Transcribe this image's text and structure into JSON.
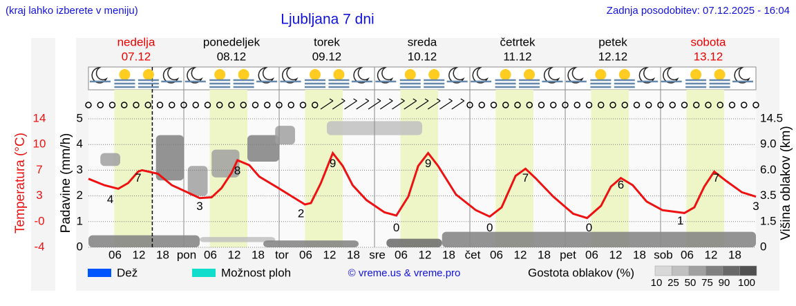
{
  "header": {
    "hint": "(kraj lahko izberete v meniju)",
    "update": "Zadnja posodobitev: 07.12.2025 - 16:04",
    "copyright": "© vreme.us & vreme.pro"
  },
  "chart_data": {
    "type": "meteogram",
    "title": "Ljubljana 7 dni",
    "days": [
      {
        "name": "nedelja",
        "date": "07.12",
        "color": "#ee0000"
      },
      {
        "name": "ponedeljek",
        "date": "08.12",
        "color": "#000000"
      },
      {
        "name": "torek",
        "date": "09.12",
        "color": "#000000"
      },
      {
        "name": "sreda",
        "date": "10.12",
        "color": "#000000"
      },
      {
        "name": "četrtek",
        "date": "11.12",
        "color": "#000000"
      },
      {
        "name": "petek",
        "date": "12.12",
        "color": "#000000"
      },
      {
        "name": "sobota",
        "date": "13.12",
        "color": "#ee0000"
      }
    ],
    "xlim": [
      0,
      168
    ],
    "xticks": [
      {
        "value": 6,
        "label": "06"
      },
      12,
      18,
      {
        "value": 24,
        "label": "pon"
      },
      {
        "value": 30,
        "label": "06"
      },
      {
        "value": 36,
        "label": "12"
      },
      {
        "value": 42,
        "label": "18"
      },
      {
        "value": 48,
        "label": "tor"
      },
      {
        "value": 54,
        "label": "06"
      },
      {
        "value": 60,
        "label": "12"
      },
      {
        "value": 66,
        "label": "18"
      },
      {
        "value": 72,
        "label": "sre"
      },
      {
        "value": 78,
        "label": "06"
      },
      {
        "value": 84,
        "label": "12"
      },
      {
        "value": 90,
        "label": "18"
      },
      {
        "value": 96,
        "label": "čet"
      },
      {
        "value": 102,
        "label": "06"
      },
      {
        "value": 108,
        "label": "12"
      },
      {
        "value": 114,
        "label": "18"
      },
      {
        "value": 120,
        "label": "pet"
      },
      {
        "value": 126,
        "label": "06"
      },
      {
        "value": 132,
        "label": "12"
      },
      {
        "value": 138,
        "label": "18"
      },
      {
        "value": 144,
        "label": "sob"
      },
      {
        "value": 150,
        "label": "06"
      },
      {
        "value": 156,
        "label": "12"
      },
      {
        "value": 162,
        "label": "18"
      }
    ],
    "now": 16.07,
    "daylight": [
      6.5,
      16
    ],
    "ylabel": "Padavine (mm/h)",
    "ylim": [
      0,
      5
    ],
    "yticks": [
      0,
      1,
      2,
      3,
      4,
      5
    ],
    "temperature": {
      "label": "Temperatura (°C)",
      "color": "#ee1111",
      "ylim": [
        -4,
        14
      ],
      "ticks": [
        {
          "value": -4,
          "label": "-4"
        },
        {
          "value": -0.4,
          "label": "-0"
        },
        {
          "value": 3.2,
          "label": "3"
        },
        {
          "value": 6.8,
          "label": "7"
        },
        {
          "value": 10.4,
          "label": "10"
        },
        14
      ],
      "x": [
        0,
        4,
        7.5,
        10,
        12.5,
        13.5,
        17.5,
        21,
        24.5,
        28,
        31,
        33.5,
        36,
        37.5,
        40.5,
        43,
        47.5,
        51,
        54.5,
        56,
        58.5,
        61.5,
        64,
        66.5,
        70,
        74.5,
        77.5,
        80.5,
        83,
        85.5,
        88,
        92.5,
        97.5,
        101,
        104,
        107.5,
        110,
        112.5,
        117,
        122,
        125.5,
        129,
        131.5,
        134,
        137,
        140.5,
        144.5,
        150,
        152.5,
        155,
        157.5,
        160.5,
        164.5,
        168
      ],
      "values": [
        5.6,
        4.7,
        4.2,
        5.0,
        6.6,
        6.8,
        6.3,
        4.7,
        3.8,
        2.9,
        3.0,
        4.3,
        6.4,
        8.2,
        7.5,
        5.9,
        4.4,
        3.2,
        2.0,
        2.2,
        5.0,
        9.2,
        7.4,
        4.7,
        2.6,
        0.9,
        0.45,
        3.1,
        7.4,
        9.2,
        7.4,
        3.4,
        1.2,
        0.3,
        1.6,
        6.0,
        7.0,
        5.7,
        3.1,
        0.7,
        0.1,
        1.8,
        4.5,
        5.7,
        4.7,
        2.4,
        1.2,
        0.8,
        1.6,
        4.5,
        6.6,
        5.3,
        3.7,
        3.1
      ],
      "extremes": {
        "x": [
          5.5,
          12.5,
          28,
          37.5,
          53.5,
          61.5,
          77.5,
          85.5,
          101,
          110,
          126,
          134,
          149,
          158,
          168
        ],
        "values": [
          4,
          7,
          3,
          8,
          2,
          9,
          0,
          9,
          0,
          7,
          0,
          6,
          1,
          7,
          3
        ]
      }
    },
    "clouds": {
      "label": "Višina oblakov (km)",
      "ticks": [
        0,
        1.5,
        3.5,
        {
          "value": 6.0,
          "label": "6.0"
        },
        {
          "value": 9.0,
          "label": "9.0"
        },
        14.5
      ],
      "legend": "Gostota oblakov (%)",
      "levels": [
        10,
        25,
        50,
        75,
        90,
        100
      ],
      "colors": [
        "#d8d8d8",
        "#c0c0c0",
        "#a0a0a0",
        "#808080",
        "#686868",
        "#505050"
      ],
      "blobs": [
        {
          "x": [
            0,
            28
          ],
          "height": [
            0,
            0.7
          ],
          "density": 75
        },
        {
          "x": [
            28,
            47
          ],
          "height": [
            0.3,
            0.6
          ],
          "density": 25
        },
        {
          "x": [
            44,
            68
          ],
          "height": [
            0,
            0.4
          ],
          "density": 75
        },
        {
          "x": [
            75,
            89
          ],
          "height": [
            0,
            0.5
          ],
          "density": 90
        },
        {
          "x": [
            89,
            168
          ],
          "height": [
            0,
            0.9
          ],
          "density": 75
        },
        {
          "x": [
            3,
            8
          ],
          "height": [
            6.5,
            8
          ],
          "density": 50
        },
        {
          "x": [
            17,
            24
          ],
          "height": [
            5,
            11
          ],
          "density": 75
        },
        {
          "x": [
            25,
            30
          ],
          "height": [
            3.5,
            6.5
          ],
          "density": 50
        },
        {
          "x": [
            31,
            38
          ],
          "height": [
            5.3,
            8.4
          ],
          "density": 50
        },
        {
          "x": [
            40,
            48
          ],
          "height": [
            7,
            11
          ],
          "density": 75
        },
        {
          "x": [
            47,
            52
          ],
          "height": [
            9,
            13
          ],
          "density": 50
        },
        {
          "x": [
            60,
            84
          ],
          "height": [
            11,
            14
          ],
          "density": 25
        }
      ]
    },
    "legend": [
      {
        "name": "Dež",
        "color": "#0055ff"
      },
      {
        "name": "Možnost ploh",
        "color": "#11ddcc"
      }
    ]
  }
}
